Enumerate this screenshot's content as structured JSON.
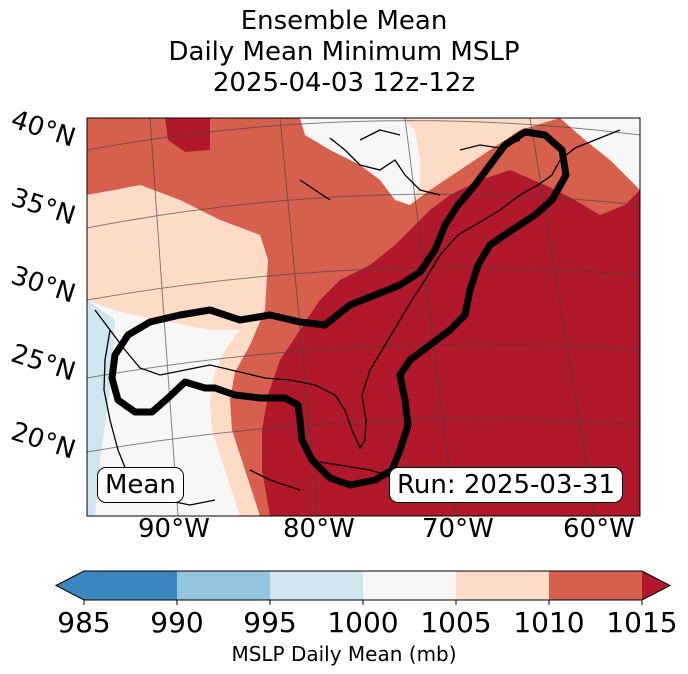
{
  "title": {
    "line1": "Ensemble Mean",
    "line2": "Daily Mean Minimum MSLP",
    "line3": "2025-04-03 12z-12z"
  },
  "map": {
    "lat_labels": [
      "40°N",
      "35°N",
      "30°N",
      "25°N",
      "20°N"
    ],
    "lon_labels": [
      "90°W",
      "80°W",
      "70°W",
      "60°W"
    ],
    "mean_label": "Mean",
    "run_label": "Run: 2025-03-31"
  },
  "colorbar": {
    "label": "MSLP Daily Mean (mb)",
    "ticks": [
      "985",
      "990",
      "995",
      "1000",
      "1005",
      "1010",
      "1015"
    ],
    "colors": [
      "#3a87c0",
      "#93c5de",
      "#d1e5f0",
      "#f7f7f7",
      "#fddbc7",
      "#d6604d",
      "#b2182b"
    ]
  }
}
